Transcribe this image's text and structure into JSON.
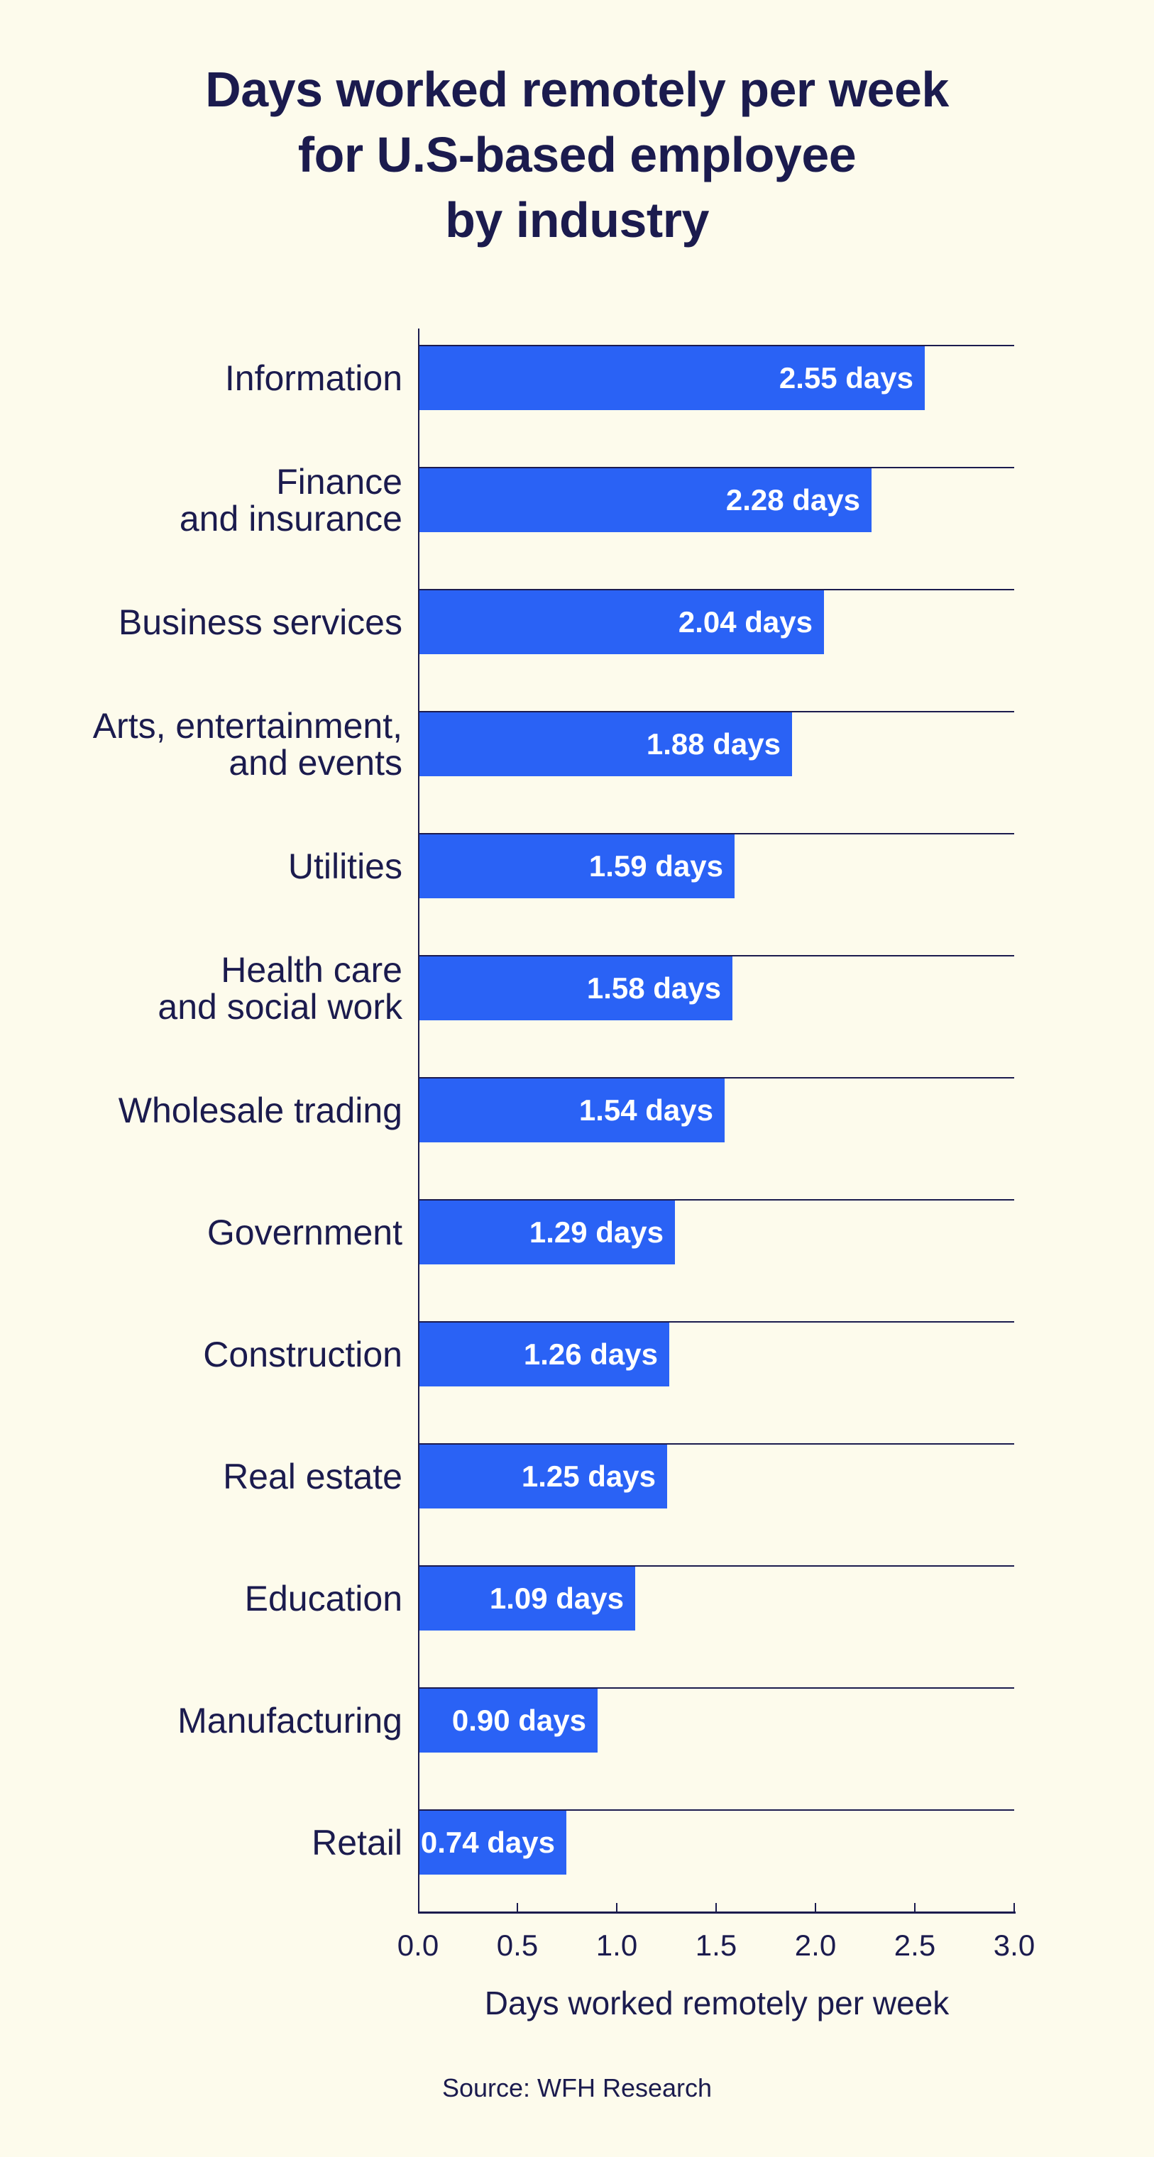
{
  "title": {
    "lines": [
      "Days worked remotely per week",
      "for U.S-based employee",
      "by industry"
    ]
  },
  "chart_data": {
    "type": "bar",
    "orientation": "horizontal",
    "title": "Days worked remotely per week for U.S-based employee by industry",
    "categories": [
      "Information",
      "Finance\nand insurance",
      "Business services",
      "Arts, entertainment,\nand events",
      "Utilities",
      "Health care\nand social work",
      "Wholesale trading",
      "Government",
      "Construction",
      "Real estate",
      "Education",
      "Manufacturing",
      "Retail"
    ],
    "values": [
      2.55,
      2.28,
      2.04,
      1.88,
      1.59,
      1.58,
      1.54,
      1.29,
      1.26,
      1.25,
      1.09,
      0.9,
      0.74
    ],
    "value_labels": [
      "2.55 days",
      "2.28 days",
      "2.04 days",
      "1.88 days",
      "1.59 days",
      "1.58 days",
      "1.54 days",
      "1.29 days",
      "1.26 days",
      "1.25 days",
      "1.09 days",
      "0.90 days",
      "0.74 days"
    ],
    "xlabel": "Days worked remotely per week",
    "xlim": [
      0,
      3
    ],
    "xtick_labels": [
      "0.0",
      "0.5",
      "1.0",
      "1.5",
      "2.0",
      "2.5",
      "3.0"
    ],
    "grid": "per-bar horizontal gridline at top of each bar, ticks inside axis",
    "legend": "none"
  },
  "source": {
    "text": "Source: WFH Research"
  },
  "colors": {
    "background": "#fdfbec",
    "bar": "#2a62f5",
    "text": "#1b1b4e",
    "value_label": "#ffffff"
  }
}
